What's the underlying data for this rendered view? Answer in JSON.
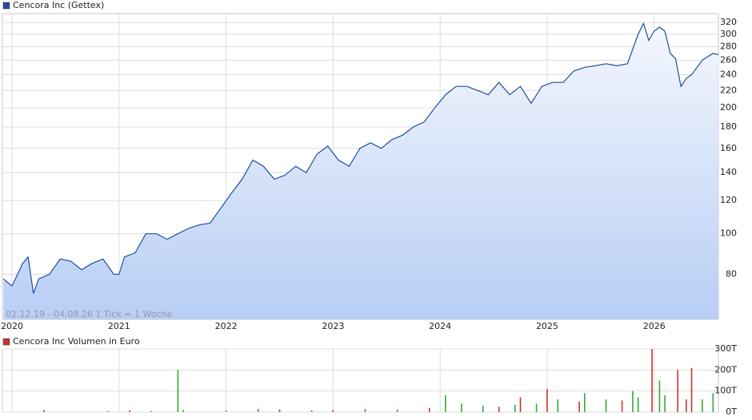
{
  "chart_data": [
    {
      "type": "line",
      "annotation": "02.12.19 - 04.08.26   1 Tick = 1 Woche",
      "log_scale": true,
      "grid": true,
      "x": [
        2019.92,
        2020.0,
        2020.1,
        2020.15,
        2020.2,
        2020.25,
        2020.35,
        2020.45,
        2020.55,
        2020.65,
        2020.75,
        2020.85,
        2020.95,
        2021.0,
        2021.05,
        2021.15,
        2021.25,
        2021.35,
        2021.45,
        2021.55,
        2021.65,
        2021.75,
        2021.85,
        2021.95,
        2022.05,
        2022.15,
        2022.25,
        2022.35,
        2022.45,
        2022.55,
        2022.65,
        2022.75,
        2022.85,
        2022.95,
        2023.05,
        2023.15,
        2023.25,
        2023.35,
        2023.45,
        2023.55,
        2023.65,
        2023.75,
        2023.85,
        2023.95,
        2024.05,
        2024.15,
        2024.25,
        2024.35,
        2024.45,
        2024.55,
        2024.65,
        2024.75,
        2024.85,
        2024.95,
        2025.05,
        2025.15,
        2025.25,
        2025.35,
        2025.45,
        2025.55,
        2025.65,
        2025.75,
        2025.85,
        2025.9,
        2025.95,
        2026.0,
        2026.05,
        2026.1,
        2026.15,
        2026.2,
        2026.25,
        2026.3,
        2026.35,
        2026.45,
        2026.55,
        2026.6
      ],
      "series": [
        {
          "name": "Cencora Inc (Gettex)",
          "color": "#1f4f9e",
          "values": [
            78,
            75,
            85,
            88,
            72,
            78,
            80,
            87,
            86,
            82,
            85,
            87,
            80,
            80,
            88,
            90,
            100,
            100,
            97,
            100,
            103,
            105,
            106,
            115,
            125,
            135,
            150,
            145,
            135,
            138,
            145,
            140,
            155,
            162,
            150,
            145,
            160,
            165,
            160,
            168,
            172,
            180,
            185,
            200,
            215,
            225,
            225,
            220,
            215,
            230,
            215,
            225,
            205,
            225,
            230,
            230,
            245,
            250,
            252,
            255,
            252,
            255,
            300,
            318,
            290,
            305,
            312,
            305,
            270,
            262,
            225,
            235,
            240,
            260,
            270,
            268
          ]
        }
      ],
      "xlim": [
        2019.91,
        2026.6
      ],
      "xticks": [
        2020,
        2021,
        2022,
        2023,
        2024,
        2025,
        2026
      ],
      "ylim": [
        62.4,
        336
      ],
      "yticks": [
        80,
        100,
        120,
        140,
        160,
        180,
        200,
        220,
        240,
        260,
        280,
        300,
        320
      ]
    },
    {
      "type": "bar",
      "grid": true,
      "x": [
        2020.3,
        2020.9,
        2021.1,
        2021.3,
        2021.55,
        2021.6,
        2022.0,
        2022.3,
        2022.5,
        2022.8,
        2023.0,
        2023.3,
        2023.6,
        2023.9,
        2024.05,
        2024.2,
        2024.4,
        2024.55,
        2024.7,
        2024.75,
        2024.9,
        2025.0,
        2025.1,
        2025.3,
        2025.35,
        2025.55,
        2025.7,
        2025.8,
        2025.85,
        2025.98,
        2026.05,
        2026.1,
        2026.22,
        2026.3,
        2026.35,
        2026.45,
        2026.55
      ],
      "series": [
        {
          "name": "Cencora Inc Volumen in Euro",
          "color": "#c0392b",
          "values": [
            10000,
            5000,
            8000,
            5000,
            200000,
            10000,
            8000,
            15000,
            12000,
            8000,
            10000,
            15000,
            12000,
            20000,
            80000,
            40000,
            30000,
            25000,
            35000,
            70000,
            40000,
            110000,
            60000,
            50000,
            90000,
            60000,
            55000,
            100000,
            70000,
            300000,
            150000,
            80000,
            200000,
            60000,
            210000,
            60000,
            90000
          ],
          "colors": [
            "#c33",
            "#3a3",
            "#c33",
            "#3a3",
            "#3a3",
            "#3a3",
            "#3a3",
            "#3a3",
            "#c33",
            "#3a3",
            "#c33",
            "#3a3",
            "#3a3",
            "#c33",
            "#3a3",
            "#3a3",
            "#3a3",
            "#c33",
            "#3a3",
            "#c33",
            "#3a3",
            "#c33",
            "#3a3",
            "#c33",
            "#3a3",
            "#3a3",
            "#c33",
            "#3a3",
            "#3a3",
            "#c33",
            "#3a3",
            "#3a3",
            "#c33",
            "#c33",
            "#c33",
            "#3a3",
            "#3a3"
          ]
        }
      ],
      "xlim": [
        2019.91,
        2026.6
      ],
      "xticks": [
        2020,
        2021,
        2022,
        2023,
        2024,
        2025,
        2026
      ],
      "ylim": [
        0,
        300000
      ],
      "yticks": [
        {
          "value": 0,
          "label": "0T"
        },
        {
          "value": 100000,
          "label": "100T"
        },
        {
          "value": 200000,
          "label": "200T"
        },
        {
          "value": 300000,
          "label": "300T"
        }
      ]
    }
  ]
}
